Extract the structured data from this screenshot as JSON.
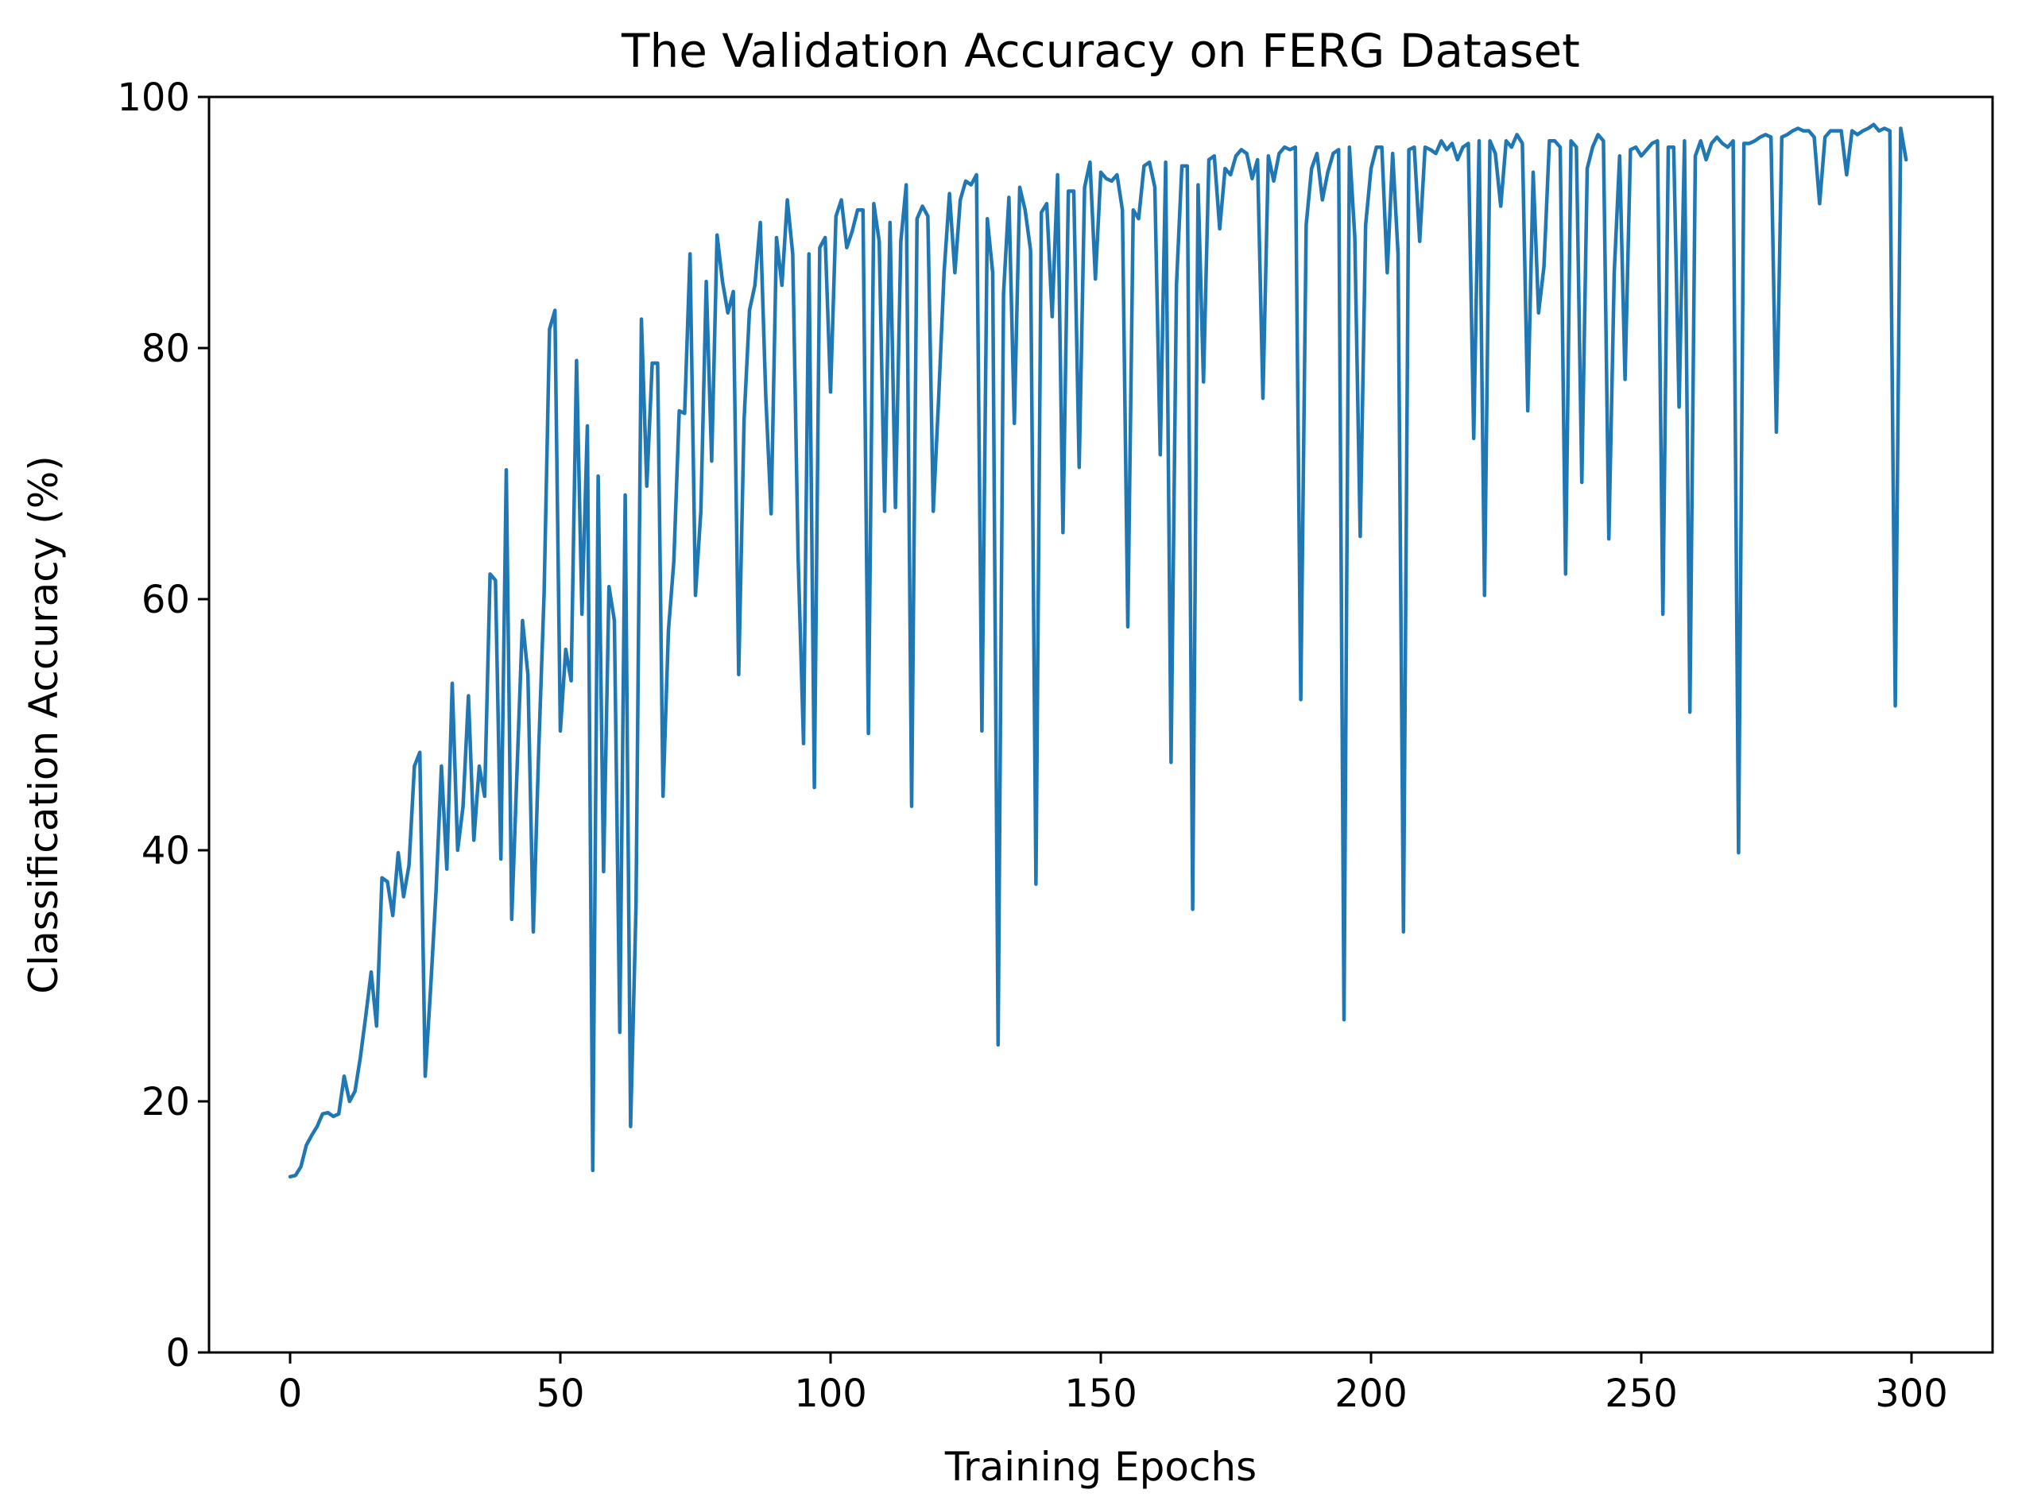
{
  "chart_data": {
    "type": "line",
    "title": "The Validation Accuracy on FERG Dataset",
    "xlabel": "Training Epochs",
    "ylabel": "Classification Accuracy (%)",
    "xlim": [
      -15,
      315
    ],
    "ylim": [
      0,
      100
    ],
    "xticks": [
      0,
      50,
      100,
      150,
      200,
      250,
      300
    ],
    "yticks": [
      0,
      20,
      40,
      60,
      80,
      100
    ],
    "grid": false,
    "line_color": "#1f77b4",
    "series": [
      {
        "values": [
          14.0,
          14.1,
          14.8,
          16.5,
          17.3,
          18.0,
          19.0,
          19.1,
          18.8,
          19.0,
          22.0,
          20.0,
          20.8,
          23.5,
          26.8,
          30.3,
          26.0,
          37.8,
          37.5,
          34.8,
          39.8,
          36.3,
          38.8,
          46.7,
          47.8,
          22.0,
          29.0,
          36.7,
          46.7,
          38.5,
          53.3,
          40.0,
          43.5,
          52.3,
          40.8,
          46.7,
          44.3,
          62.0,
          61.5,
          39.3,
          70.3,
          34.5,
          46.5,
          58.3,
          54.0,
          33.5,
          48.0,
          60.5,
          81.5,
          83.0,
          49.5,
          56.0,
          53.5,
          79.0,
          58.8,
          73.8,
          14.5,
          69.8,
          38.3,
          61.0,
          58.3,
          25.5,
          68.3,
          18.0,
          35.5,
          82.3,
          69.0,
          78.8,
          78.8,
          44.3,
          57.5,
          63.0,
          75.0,
          74.8,
          87.5,
          60.3,
          67.0,
          85.3,
          71.0,
          89.0,
          85.3,
          82.8,
          84.5,
          54.0,
          74.3,
          83.0,
          85.0,
          90.0,
          76.3,
          66.8,
          88.8,
          85.0,
          91.8,
          87.5,
          63.3,
          48.5,
          87.5,
          45.0,
          88.0,
          88.8,
          76.5,
          90.5,
          91.8,
          88.0,
          89.3,
          91.0,
          91.0,
          49.3,
          91.5,
          88.5,
          67.0,
          90.0,
          67.3,
          88.5,
          93.0,
          43.5,
          90.3,
          91.3,
          90.5,
          67.0,
          76.0,
          86.0,
          92.3,
          86.0,
          91.8,
          93.3,
          93.0,
          93.8,
          49.5,
          90.3,
          86.0,
          24.5,
          84.3,
          92.0,
          74.0,
          92.8,
          91.0,
          87.8,
          37.3,
          90.8,
          91.5,
          82.5,
          93.8,
          65.3,
          92.5,
          92.5,
          70.5,
          92.8,
          94.8,
          85.5,
          94.0,
          93.5,
          93.3,
          93.8,
          91.0,
          57.8,
          91.0,
          90.3,
          94.5,
          94.8,
          92.8,
          71.5,
          94.8,
          47.0,
          85.0,
          94.5,
          94.5,
          35.3,
          93.0,
          77.3,
          95.0,
          95.3,
          89.5,
          94.3,
          93.8,
          95.3,
          95.8,
          95.5,
          93.5,
          95.0,
          76.0,
          95.3,
          93.3,
          95.5,
          96.0,
          95.8,
          96.0,
          52.0,
          89.8,
          94.3,
          95.5,
          91.8,
          94.0,
          95.5,
          95.8,
          26.5,
          96.0,
          88.8,
          65.0,
          89.8,
          94.3,
          96.0,
          96.0,
          86.0,
          95.5,
          87.5,
          33.5,
          95.8,
          96.0,
          88.5,
          96.0,
          95.8,
          95.5,
          96.5,
          95.8,
          96.3,
          95.0,
          96.0,
          96.3,
          72.8,
          96.5,
          60.3,
          96.5,
          95.5,
          91.3,
          96.5,
          96.0,
          97.0,
          96.3,
          75.0,
          94.0,
          82.8,
          86.5,
          96.5,
          96.5,
          96.0,
          62.0,
          96.5,
          96.0,
          69.3,
          94.3,
          96.0,
          97.0,
          96.5,
          64.8,
          86.0,
          95.3,
          77.5,
          95.8,
          96.0,
          95.3,
          95.8,
          96.3,
          96.5,
          58.8,
          96.0,
          96.0,
          75.3,
          96.5,
          51.0,
          95.3,
          96.5,
          95.0,
          96.3,
          96.8,
          96.3,
          96.0,
          96.5,
          39.8,
          96.3,
          96.3,
          96.5,
          96.8,
          97.0,
          96.8,
          73.3,
          96.8,
          97.0,
          97.3,
          97.5,
          97.3,
          97.3,
          96.8,
          91.5,
          96.8,
          97.3,
          97.3,
          97.3,
          93.8,
          97.3,
          97.0,
          97.3,
          97.5,
          97.8,
          97.3,
          97.5,
          97.3,
          51.5,
          97.5,
          95.0
        ]
      }
    ]
  }
}
